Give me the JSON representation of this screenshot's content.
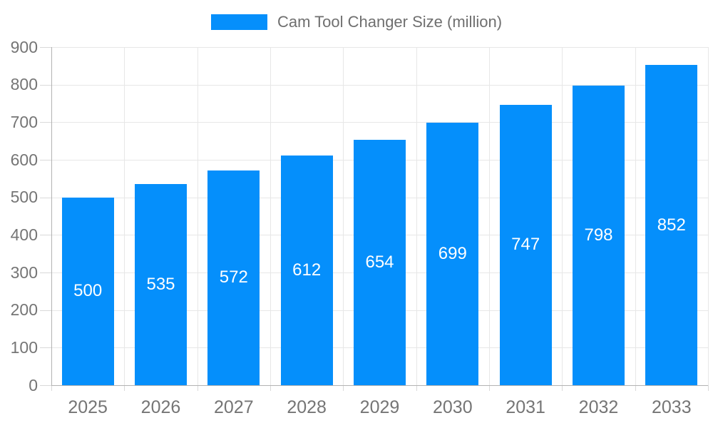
{
  "chart_data": {
    "type": "bar",
    "title": "Cam Tool Changer Size (million)",
    "categories": [
      "2025",
      "2026",
      "2027",
      "2028",
      "2029",
      "2030",
      "2031",
      "2032",
      "2033"
    ],
    "values": [
      500,
      535,
      572,
      612,
      654,
      699,
      747,
      798,
      852
    ],
    "xlabel": "",
    "ylabel": "",
    "ylim": [
      0,
      900
    ],
    "ytick_step": 100,
    "ytick_labels": [
      "0",
      "100",
      "200",
      "300",
      "400",
      "500",
      "600",
      "700",
      "800",
      "900"
    ],
    "grid": "on",
    "legend_position": "top",
    "data_labels": "inside-center",
    "colors": {
      "bar": "#058FFB",
      "data_label": "#ffffff",
      "axis_label": "#757575",
      "legend_text": "#6f6f6f",
      "gridline": "#e7e7e7",
      "tick": "#d9d9d9",
      "axis_line": "#b3b3b3",
      "background": "#ffffff"
    }
  }
}
